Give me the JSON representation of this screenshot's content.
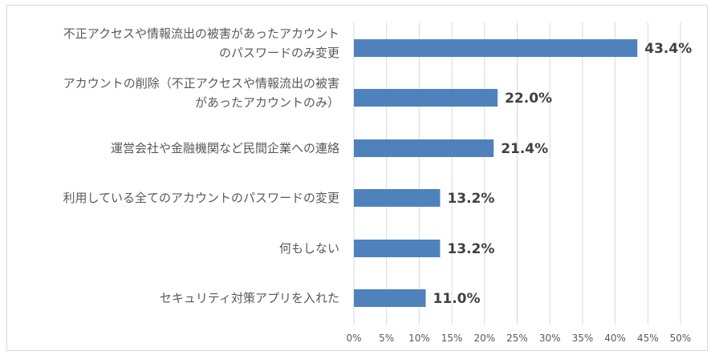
{
  "chart_data": {
    "type": "bar",
    "orientation": "horizontal",
    "categories": [
      [
        "不正アクセスや情報流出の被害があったアカウント",
        "のパスワードのみ変更"
      ],
      [
        "アカウントの削除（不正アクセスや情報流出の被害",
        "があったアカウントのみ）"
      ],
      [
        "運営会社や金融機関など民間企業への連絡"
      ],
      [
        "利用している全てのアカウントのパスワードの変更"
      ],
      [
        "何もしない"
      ],
      [
        "セキュリティ対策アプリを入れた"
      ]
    ],
    "values": [
      43.4,
      22.0,
      21.4,
      13.2,
      13.2,
      11.0
    ],
    "data_labels": [
      "43.4%",
      "22.0%",
      "21.4%",
      "13.2%",
      "13.2%",
      "11.0%"
    ],
    "xlim": [
      0,
      50
    ],
    "xticks": [
      0,
      5,
      10,
      15,
      20,
      25,
      30,
      35,
      40,
      45,
      50
    ],
    "xtick_labels": [
      "0%",
      "5%",
      "10%",
      "15%",
      "20%",
      "25%",
      "30%",
      "35%",
      "40%",
      "45%",
      "50%"
    ],
    "grid": "vertical",
    "legend": "none",
    "bar_color": "#4f81bd",
    "title": "",
    "xlabel": "",
    "ylabel": ""
  }
}
